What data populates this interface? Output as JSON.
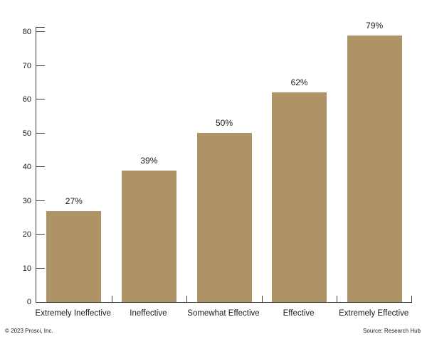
{
  "chart_data": {
    "type": "bar",
    "title": "",
    "xlabel": "",
    "ylabel": "",
    "categories": [
      "Extremely Ineffective",
      "Ineffective",
      "Somewhat Effective",
      "Effective",
      "Extremely Effective"
    ],
    "values": [
      27,
      39,
      50,
      62,
      79
    ],
    "value_labels": [
      "27%",
      "39%",
      "50%",
      "62%",
      "79%"
    ],
    "yticks": [
      0,
      10,
      20,
      30,
      40,
      50,
      60,
      70,
      80
    ],
    "ylim": [
      0,
      81.5
    ],
    "grid": false,
    "legend": false,
    "bar_color": "#AE9367",
    "axis_color": "#3f3f3f",
    "text_color": "#1a1a1a"
  },
  "footer": {
    "copyright": "© 2023 Prosci, Inc.",
    "source": "Source: Research Hub"
  }
}
